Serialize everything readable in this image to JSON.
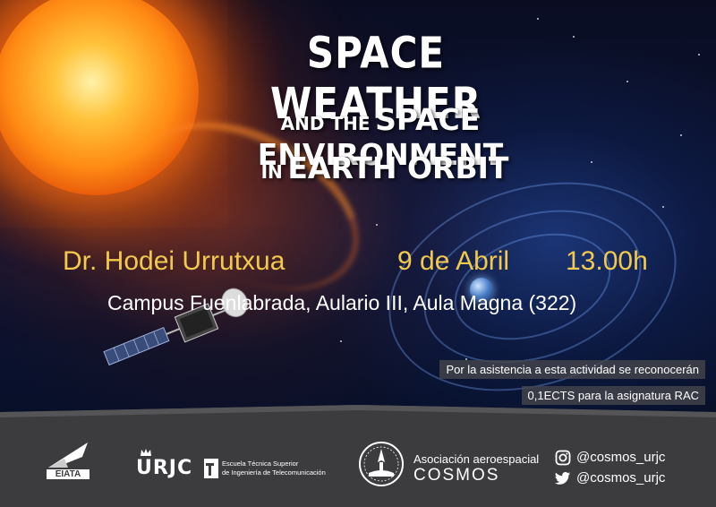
{
  "title": {
    "line1": "SPACE WEATHER",
    "line2_prefix": "AND THE",
    "line2_main": "SPACE ENVIRONMENT",
    "line3_prefix": "IN",
    "line3_main": "EARTH ORBIT"
  },
  "event": {
    "speaker": "Dr. Hodei Urrutxua",
    "date": "9 de Abril",
    "time": "13.00h",
    "venue": "Campus Fuenlabrada, Aulario III, Aula Magna (322)"
  },
  "notice": {
    "line1": "Por la asistencia a esta actividad se reconocerán",
    "line2": "0,1ECTS para la asignatura RAC"
  },
  "footer": {
    "eiata_label": "EIATA",
    "urjc_label": "URJC",
    "etsi_line1": "Escuela Técnica Superior",
    "etsi_line2": "de Ingeniería de Telecomunicación",
    "cosmos_line1": "Asociación aeroespacial",
    "cosmos_line2": "COSMOS",
    "instagram": "@cosmos_urjc",
    "twitter": "@cosmos_urjc"
  },
  "icons": [
    "instagram-icon",
    "twitter-icon",
    "eiata-logo",
    "urjc-logo",
    "cosmos-logo"
  ],
  "colors": {
    "gold": "#f2c94c",
    "footer_bg": "#3c3c3f"
  }
}
